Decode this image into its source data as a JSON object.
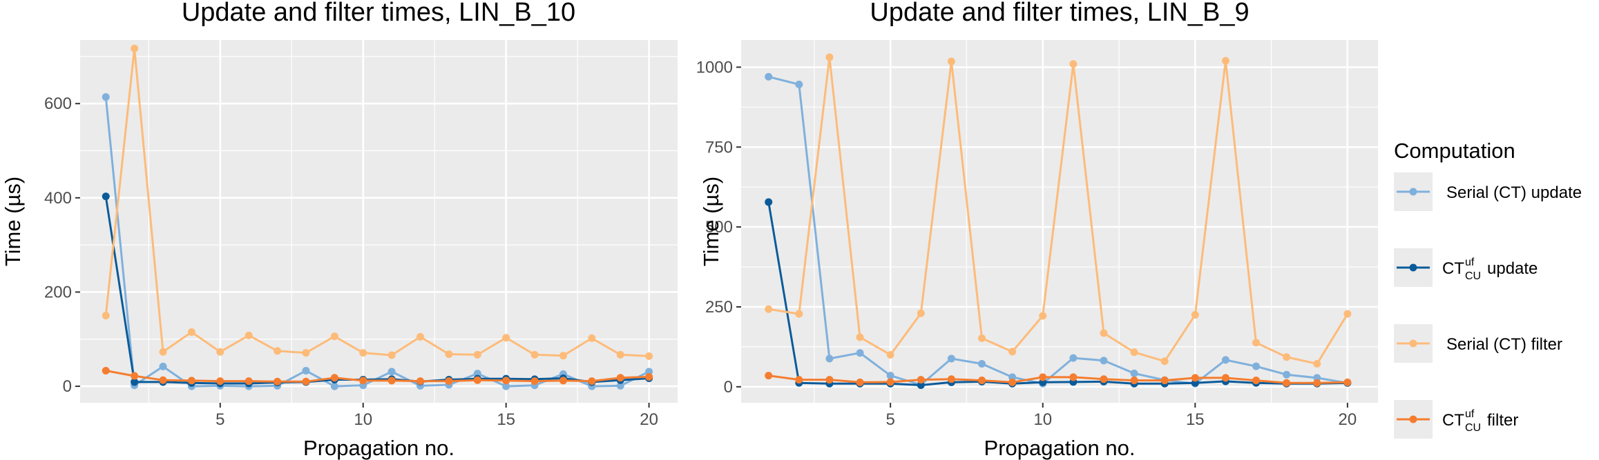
{
  "legend": {
    "title": "Computation",
    "entries": [
      {
        "base": "Serial (CT) update",
        "sup": "",
        "sub": "",
        "suffix": "",
        "color": "#7fb0dc"
      },
      {
        "base": "CT",
        "sup": "uf",
        "sub": "CU",
        "suffix": "update",
        "color": "#0a5b9a"
      },
      {
        "base": "Serial (CT) filter",
        "sup": "",
        "sub": "",
        "suffix": "",
        "color": "#fdbb79"
      },
      {
        "base": "CT",
        "sup": "uf",
        "sub": "CU",
        "suffix": "filter",
        "color": "#f47d2f"
      }
    ]
  },
  "chart_data": [
    {
      "type": "line",
      "title": "Update and filter times, LIN_B_10",
      "xlabel": "Propagation no.",
      "ylabel": "Time (µs)",
      "xlim": [
        0.1,
        21.0
      ],
      "ylim": [
        -35,
        735
      ],
      "xticks": [
        5,
        10,
        15,
        20
      ],
      "yticks": [
        0,
        200,
        400,
        600
      ],
      "grid": true,
      "x": [
        1,
        2,
        3,
        4,
        5,
        6,
        7,
        8,
        9,
        10,
        11,
        12,
        13,
        14,
        15,
        16,
        17,
        18,
        19,
        20
      ],
      "series": [
        {
          "name": "Serial (CT) update",
          "color": "#7fb0dc",
          "values": [
            614,
            2,
            42,
            0,
            1,
            0,
            1,
            33,
            0,
            2,
            31,
            1,
            3,
            27,
            0,
            2,
            26,
            0,
            1,
            31
          ]
        },
        {
          "name": "CT_CU^uf update",
          "color": "#0a5b9a",
          "values": [
            403,
            9,
            9,
            7,
            6,
            6,
            8,
            9,
            14,
            14,
            15,
            10,
            14,
            16,
            16,
            15,
            17,
            9,
            13,
            17
          ]
        },
        {
          "name": "Serial (CT) filter",
          "color": "#fdbb79",
          "values": [
            150,
            717,
            73,
            115,
            73,
            108,
            75,
            71,
            106,
            71,
            66,
            105,
            68,
            67,
            103,
            67,
            65,
            102,
            67,
            64
          ]
        },
        {
          "name": "CT_CU^uf filter",
          "color": "#f47d2f",
          "values": [
            33,
            22,
            13,
            12,
            11,
            11,
            10,
            10,
            18,
            12,
            12,
            11,
            11,
            13,
            12,
            11,
            12,
            11,
            18,
            20
          ]
        }
      ]
    },
    {
      "type": "line",
      "title": "Update and filter times, LIN_B_9",
      "xlabel": "Propagation no.",
      "ylabel": "Time (µs)",
      "xlim": [
        0.1,
        21.0
      ],
      "ylim": [
        -50,
        1085
      ],
      "xticks": [
        5,
        10,
        15,
        20
      ],
      "yticks": [
        0,
        250,
        500,
        750,
        1000
      ],
      "grid": true,
      "x": [
        1,
        2,
        3,
        4,
        5,
        6,
        7,
        8,
        9,
        10,
        11,
        12,
        13,
        14,
        15,
        16,
        17,
        18,
        19,
        20
      ],
      "series": [
        {
          "name": "Serial (CT) update",
          "color": "#7fb0dc",
          "values": [
            970,
            946,
            88,
            106,
            35,
            6,
            88,
            72,
            30,
            10,
            90,
            82,
            42,
            21,
            10,
            84,
            64,
            38,
            28,
            12
          ]
        },
        {
          "name": "CT_CU^uf update",
          "color": "#0a5b9a",
          "values": [
            578,
            12,
            10,
            10,
            10,
            5,
            14,
            16,
            10,
            14,
            15,
            16,
            10,
            10,
            12,
            17,
            12,
            10,
            10,
            12
          ]
        },
        {
          "name": "Serial (CT) filter",
          "color": "#fdbb79",
          "values": [
            243,
            228,
            1031,
            155,
            100,
            230,
            1018,
            152,
            110,
            222,
            1010,
            168,
            108,
            80,
            225,
            1020,
            138,
            93,
            72,
            228
          ]
        },
        {
          "name": "CT_CU^uf filter",
          "color": "#f47d2f",
          "values": [
            35,
            22,
            22,
            14,
            15,
            22,
            24,
            20,
            14,
            30,
            30,
            24,
            20,
            20,
            28,
            28,
            20,
            12,
            12,
            14
          ]
        }
      ]
    }
  ]
}
